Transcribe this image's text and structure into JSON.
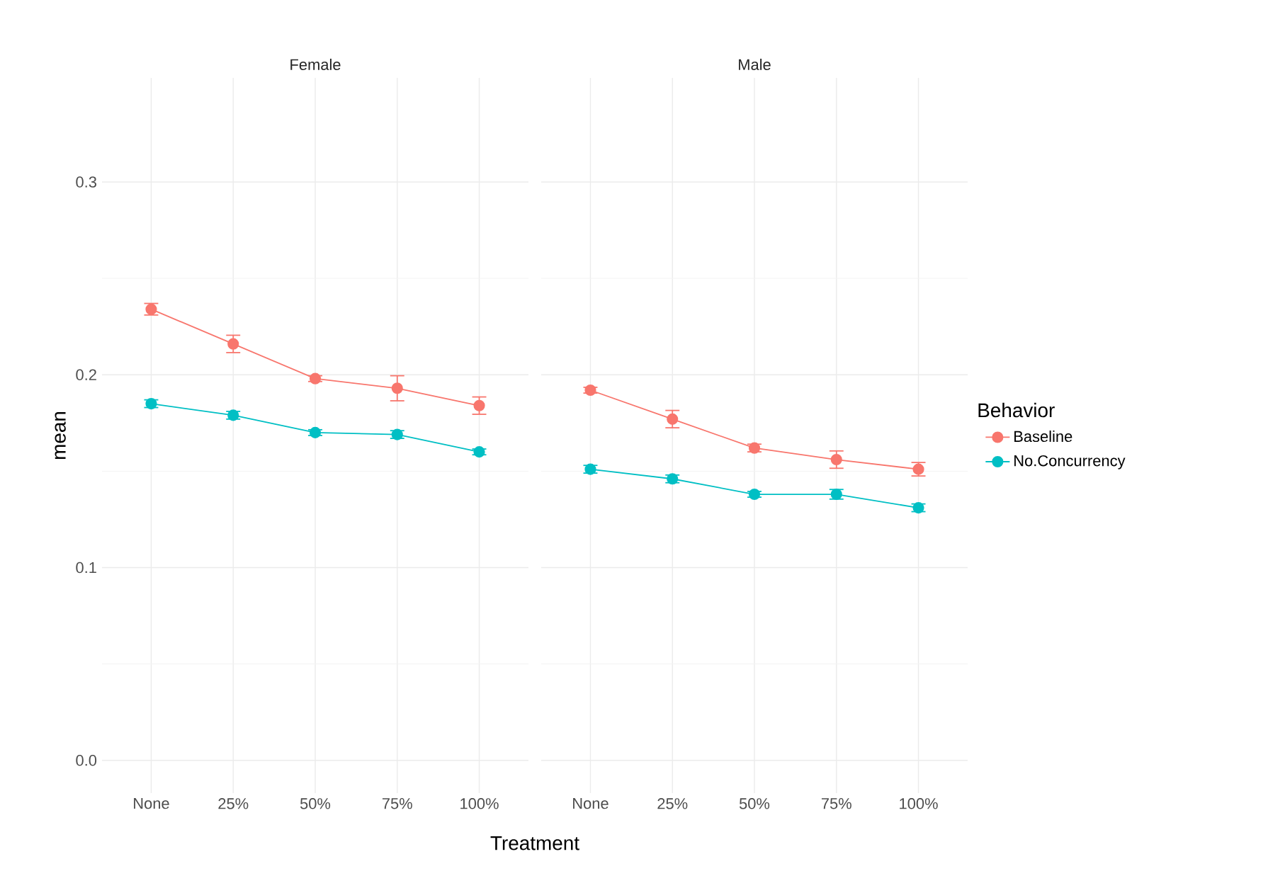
{
  "chart_data": [
    {
      "type": "line",
      "title": "Female",
      "ylabel": "mean",
      "xlabel": "Treatment",
      "categories": [
        "None",
        "25%",
        "50%",
        "75%",
        "100%"
      ],
      "ylim": [
        -0.017,
        0.354
      ],
      "yticks": [
        {
          "value": 0,
          "label": "0.0"
        },
        {
          "value": 0.1,
          "label": "0.1"
        },
        {
          "value": 0.2,
          "label": "0.2"
        },
        {
          "value": 0.3,
          "label": "0.3"
        }
      ],
      "grid": true,
      "marker": "circle",
      "line_style": "solid",
      "series": [
        {
          "color": "#f8766d",
          "values": [
            0.234,
            0.216,
            0.198,
            0.193,
            0.184
          ],
          "errors": [
            0.003,
            0.0045,
            0.0015,
            0.0065,
            0.0045
          ]
        },
        {
          "color": "#00bfc4",
          "values": [
            0.185,
            0.179,
            0.17,
            0.169,
            0.16
          ],
          "errors": [
            0.002,
            0.002,
            0.0015,
            0.002,
            0.0015
          ]
        }
      ]
    },
    {
      "type": "line",
      "title": "Male",
      "categories": [
        "None",
        "25%",
        "50%",
        "75%",
        "100%"
      ],
      "ylim": [
        -0.017,
        0.354
      ],
      "yticks": [
        0,
        0.1,
        0.2,
        0.3
      ],
      "grid": true,
      "marker": "circle",
      "line_style": "solid",
      "tick_labels": "x",
      "legend": "right",
      "legend_title": "Behavior",
      "series": [
        {
          "name": "Baseline",
          "color": "#f8766d",
          "values": [
            0.192,
            0.177,
            0.162,
            0.156,
            0.151
          ],
          "errors": [
            0.0015,
            0.0045,
            0.002,
            0.0045,
            0.0035
          ]
        },
        {
          "name": "No.Concurrency",
          "color": "#00bfc4",
          "values": [
            0.151,
            0.146,
            0.138,
            0.138,
            0.131
          ],
          "errors": [
            0.002,
            0.002,
            0.0015,
            0.0025,
            0.002
          ]
        }
      ]
    }
  ]
}
